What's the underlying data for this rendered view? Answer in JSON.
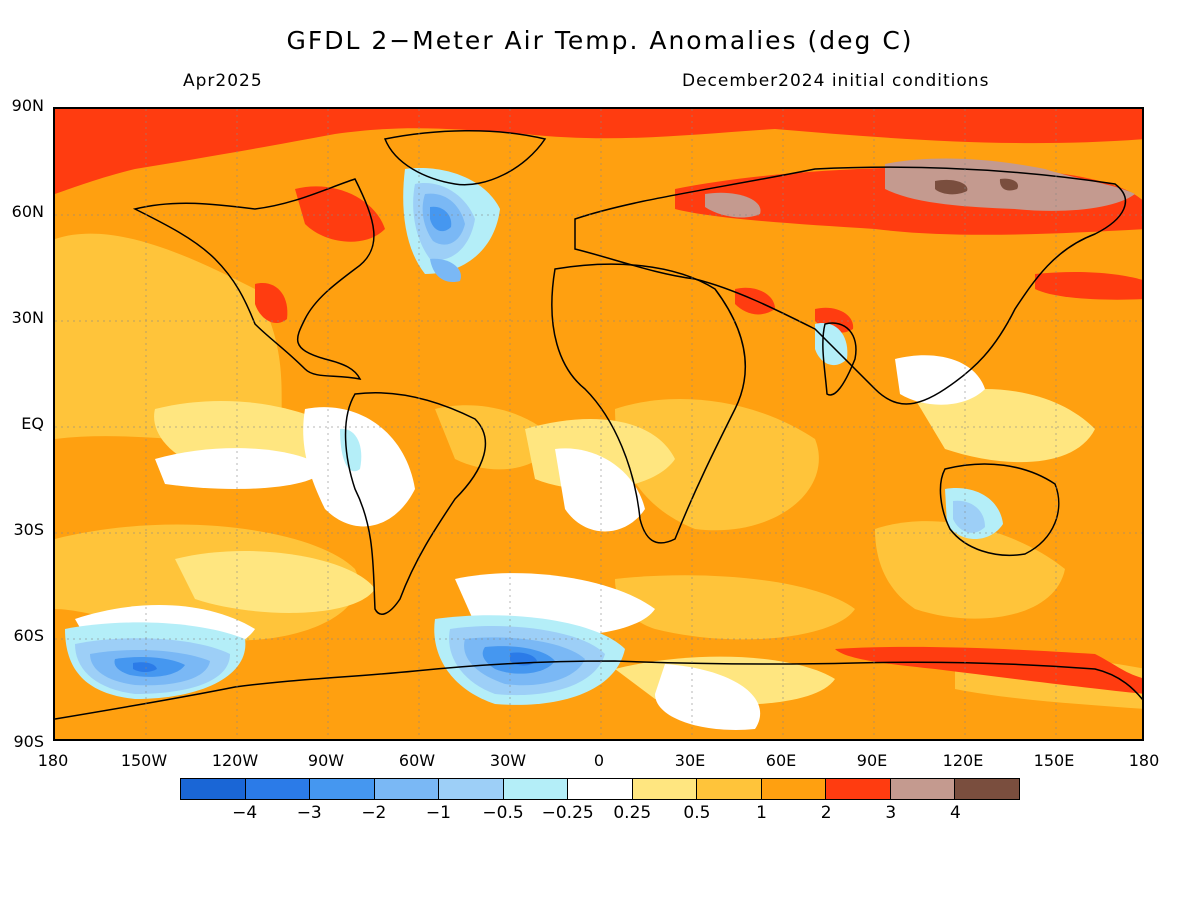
{
  "title": "GFDL 2−Meter Air Temp. Anomalies (deg C)",
  "subtitle_left": "Apr2025",
  "subtitle_right": "December2024 initial conditions",
  "lat_labels": [
    "90N",
    "60N",
    "30N",
    "EQ",
    "30S",
    "60S",
    "90S"
  ],
  "lon_labels": [
    "180",
    "150W",
    "120W",
    "90W",
    "60W",
    "30W",
    "0",
    "30E",
    "60E",
    "90E",
    "120E",
    "150E",
    "180"
  ],
  "colorbar": {
    "colors": [
      "#1a66d6",
      "#2b7be8",
      "#4597f0",
      "#7ab8f5",
      "#9dcff7",
      "#b4eef8",
      "#ffffff",
      "#ffe680",
      "#ffc43a",
      "#ffa010",
      "#ff3c10",
      "#c49a8f",
      "#7a4e3e"
    ],
    "labels": [
      "−4",
      "−3",
      "−2",
      "−1",
      "−0.5",
      "−0.25",
      "0.25",
      "0.5",
      "1",
      "2",
      "3",
      "4"
    ]
  }
}
